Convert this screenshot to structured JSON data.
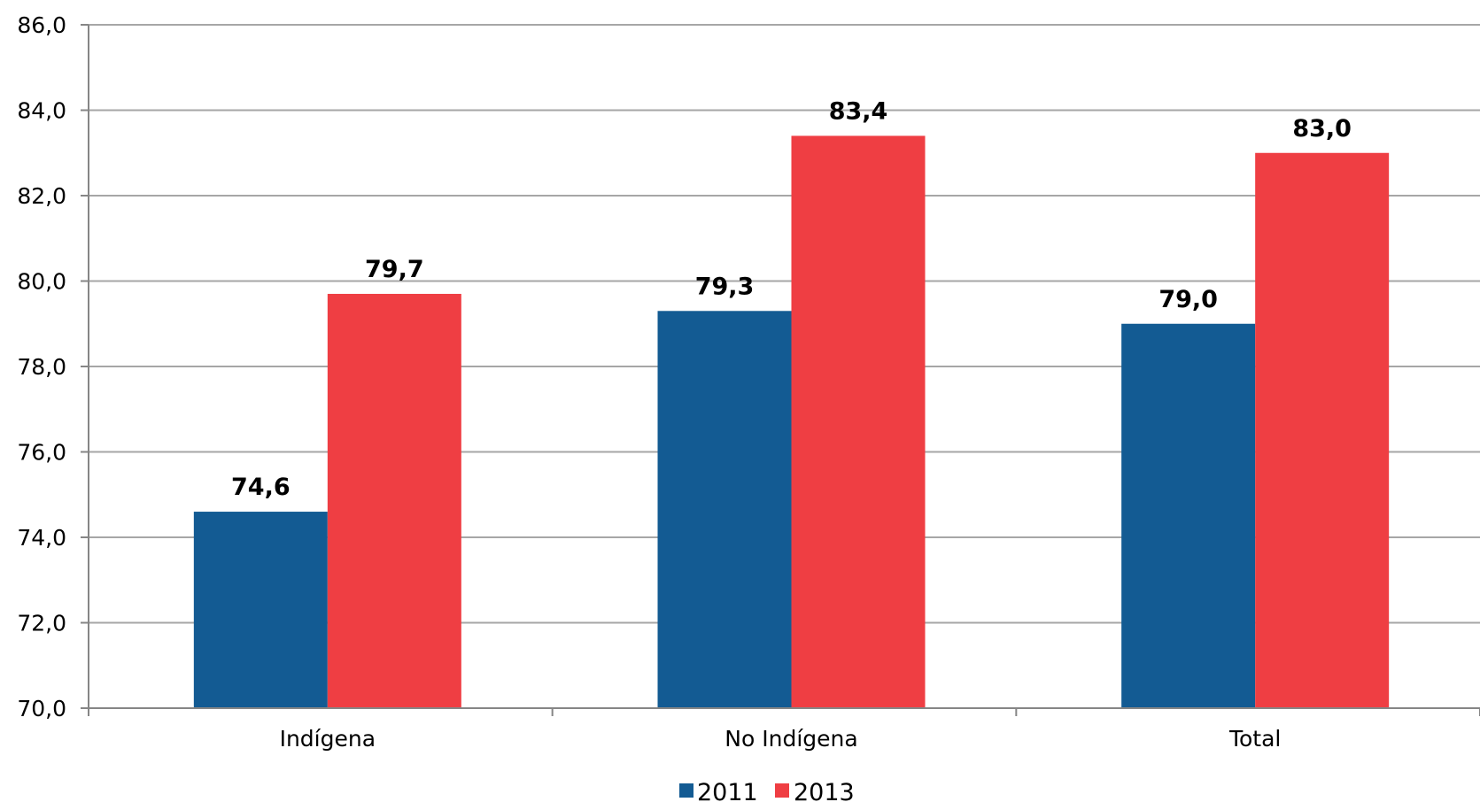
{
  "chart_data": {
    "type": "bar",
    "title": "",
    "xlabel": "",
    "ylabel": "",
    "categories": [
      "Indígena",
      "No Indígena",
      "Total"
    ],
    "series": [
      {
        "name": "2011",
        "color": "#135b93",
        "values": [
          74.6,
          79.3,
          79.0
        ],
        "labels": [
          "74,6",
          "79,3",
          "79,0"
        ]
      },
      {
        "name": "2013",
        "color": "#ef3e43",
        "values": [
          79.7,
          83.4,
          83.0
        ],
        "labels": [
          "79,7",
          "83,4",
          "83,0"
        ]
      }
    ],
    "ylim": [
      70,
      86
    ],
    "yticks": [
      70,
      72,
      74,
      76,
      78,
      80,
      82,
      84,
      86
    ],
    "ytick_labels": [
      "70,0",
      "72,0",
      "74,0",
      "76,0",
      "78,0",
      "80,0",
      "82,0",
      "84,0",
      "86,0"
    ],
    "grid": true,
    "legend_position": "bottom",
    "gridline_color": "#a6a6a6",
    "axis_color": "#868686"
  }
}
